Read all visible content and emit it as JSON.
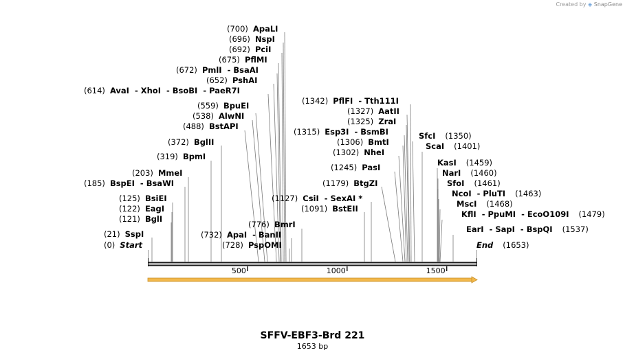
{
  "credit": {
    "prefix": "Created by",
    "brand": "SnapGene"
  },
  "title": "SFFV-EBF3-Brd 221",
  "subtitle": "1653 bp",
  "axis": {
    "ticks": [
      "500",
      "1000",
      "1500"
    ]
  },
  "labels": [
    {
      "pos": "(700)",
      "names": "ApaLI"
    },
    {
      "pos": "(696)",
      "names": "NspI"
    },
    {
      "pos": "(692)",
      "names": "PciI"
    },
    {
      "pos": "(675)",
      "names": "PflMI"
    },
    {
      "pos": "(672)",
      "names": "PmlI  - BsaAI"
    },
    {
      "pos": "(652)",
      "names": "PshAI"
    },
    {
      "pos": "(614)",
      "names": "AvaI  - XhoI  - BsoBI  - PaeR7I"
    },
    {
      "pos": "(559)",
      "names": "BpuEI"
    },
    {
      "pos": "(538)",
      "names": "AlwNI"
    },
    {
      "pos": "(488)",
      "names": "BstAPI"
    },
    {
      "pos": "(372)",
      "names": "BglII"
    },
    {
      "pos": "(319)",
      "names": "BpmI"
    },
    {
      "pos": "(203)",
      "names": "MmeI"
    },
    {
      "pos": "(185)",
      "names": "BspEI  - BsaWI"
    },
    {
      "pos": "(125)",
      "names": "BsiEI"
    },
    {
      "pos": "(122)",
      "names": "EagI"
    },
    {
      "pos": "(121)",
      "names": "BglI"
    },
    {
      "pos": "(21)",
      "names": "SspI"
    },
    {
      "pos": "(0)",
      "names": "Start"
    },
    {
      "pos": "(732)",
      "names": "ApaI  - BanII"
    },
    {
      "pos": "(728)",
      "names": "PspOMI"
    },
    {
      "pos": "(776)",
      "names": "BmrI"
    },
    {
      "pos": "(1127)",
      "names": "CsiI  - SexAI *"
    },
    {
      "pos": "(1091)",
      "names": "BstEII"
    },
    {
      "pos": "(1342)",
      "names": "PflFI  - Tth111I"
    },
    {
      "pos": "(1327)",
      "names": "AatII"
    },
    {
      "pos": "(1325)",
      "names": "ZraI"
    },
    {
      "pos": "(1315)",
      "names": "Esp3I  - BsmBI"
    },
    {
      "pos": "(1306)",
      "names": "BmtI"
    },
    {
      "pos": "(1302)",
      "names": "NheI"
    },
    {
      "pos": "(1245)",
      "names": "PasI"
    },
    {
      "pos": "(1179)",
      "names": "BtgZI"
    },
    {
      "pos": "(1350)",
      "names": "SfcI"
    },
    {
      "pos": "(1401)",
      "names": "ScaI"
    },
    {
      "pos": "(1459)",
      "names": "KasI"
    },
    {
      "pos": "(1460)",
      "names": "NarI"
    },
    {
      "pos": "(1461)",
      "names": "SfoI"
    },
    {
      "pos": "(1463)",
      "names": "NcoI  - PluTI"
    },
    {
      "pos": "(1468)",
      "names": "MscI"
    },
    {
      "pos": "(1479)",
      "names": "KflI  - PpuMI  - EcoO109I"
    },
    {
      "pos": "(1537)",
      "names": "EarI  - SapI  - BspQI"
    },
    {
      "pos": "(1653)",
      "names": "End"
    }
  ],
  "colors": {
    "backbone": "#1a1a1a",
    "leader": "#7a7a7a",
    "feature_arrow": "#f2b84b",
    "feature_outline": "#c8902a"
  }
}
